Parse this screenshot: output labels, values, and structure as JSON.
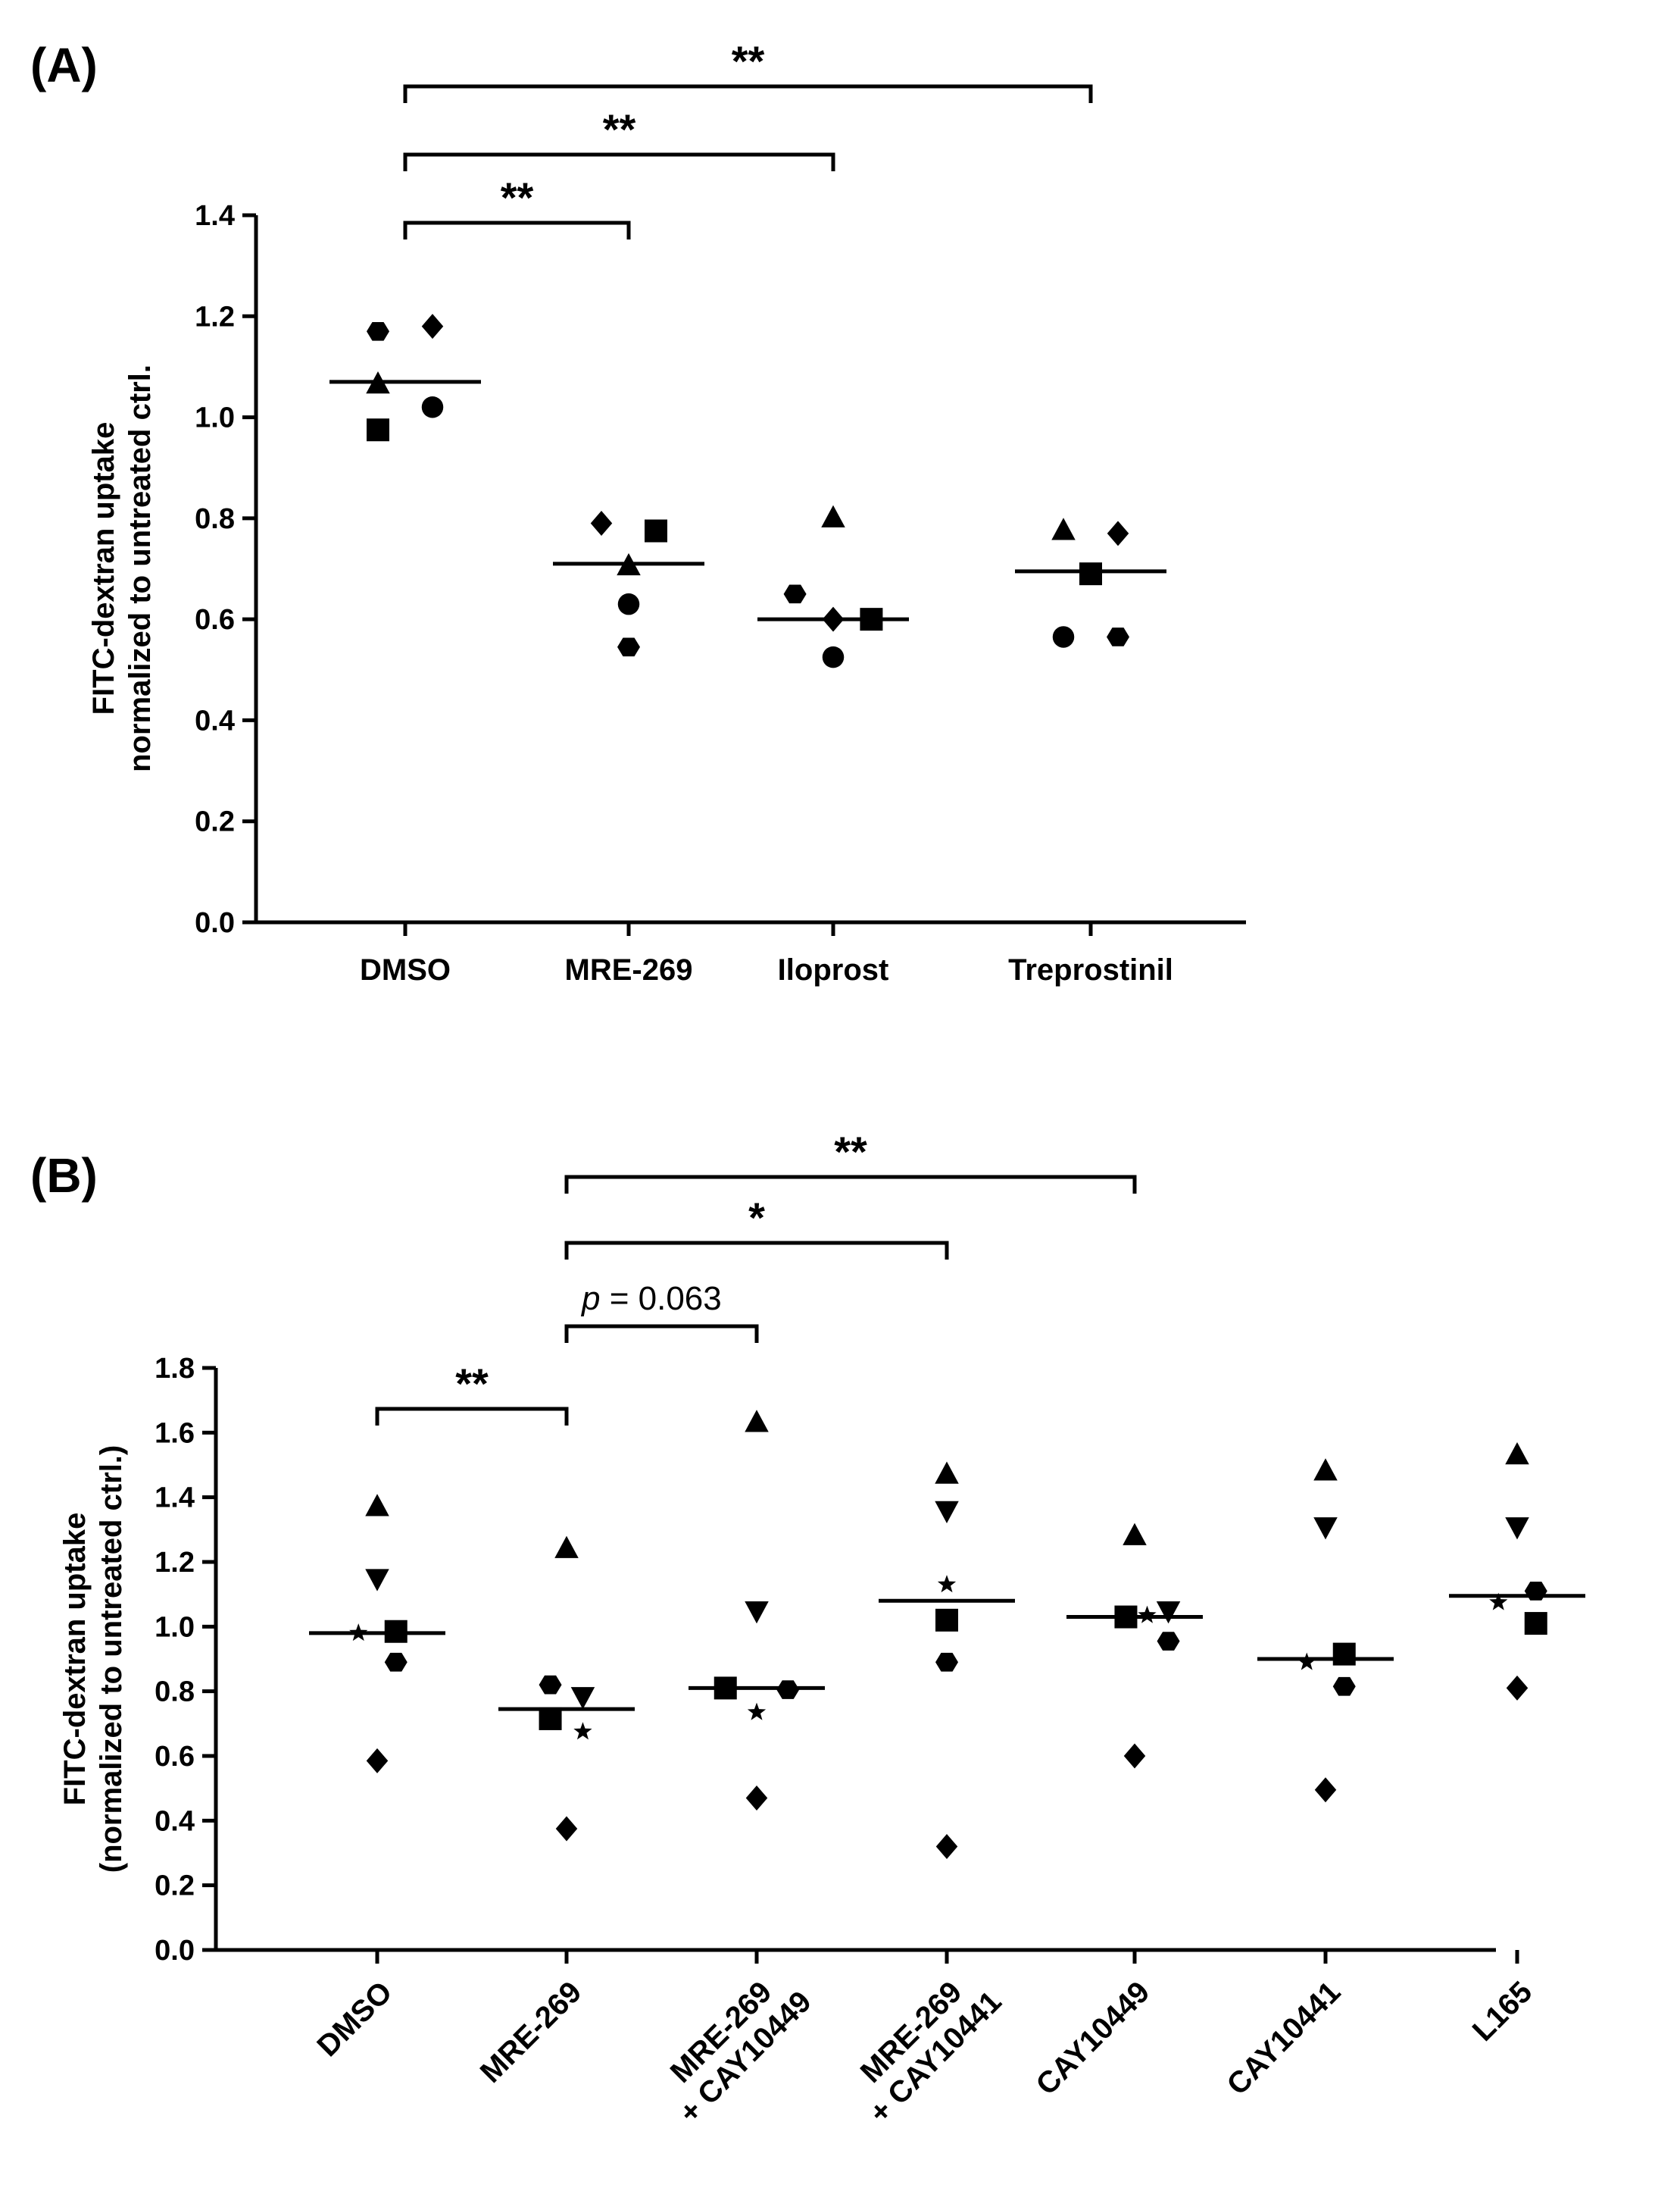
{
  "chart_data": [
    {
      "type": "scatter",
      "panel_label": "(A)",
      "ylabel": [
        "FITC-dextran uptake",
        "normalized  to untreated ctrl."
      ],
      "ylim": [
        0,
        1.4
      ],
      "yticks": [
        0.0,
        0.2,
        0.4,
        0.6,
        0.8,
        1.0,
        1.2,
        1.4
      ],
      "ytick_labels": [
        "0.0",
        "0.2",
        "0.4",
        "0.6",
        "0.8",
        "1.0",
        "1.2",
        "1.4"
      ],
      "categories": [
        "DMSO",
        "MRE-269",
        "Iloprost",
        "Treprostinil"
      ],
      "means": [
        1.07,
        0.71,
        0.6,
        0.695
      ],
      "points": [
        {
          "category": 0,
          "marker": "hexagon",
          "offset": -0.2,
          "y": 1.17
        },
        {
          "category": 0,
          "marker": "diamond",
          "offset": 0.2,
          "y": 1.18
        },
        {
          "category": 0,
          "marker": "triangle",
          "offset": -0.2,
          "y": 1.065
        },
        {
          "category": 0,
          "marker": "circle",
          "offset": 0.2,
          "y": 1.02
        },
        {
          "category": 0,
          "marker": "square",
          "offset": -0.2,
          "y": 0.975
        },
        {
          "category": 1,
          "marker": "diamond",
          "offset": -0.2,
          "y": 0.79
        },
        {
          "category": 1,
          "marker": "square",
          "offset": 0.2,
          "y": 0.775
        },
        {
          "category": 1,
          "marker": "triangle",
          "offset": 0,
          "y": 0.705
        },
        {
          "category": 1,
          "marker": "circle",
          "offset": 0,
          "y": 0.63
        },
        {
          "category": 1,
          "marker": "hexagon",
          "offset": 0,
          "y": 0.545
        },
        {
          "category": 2,
          "marker": "triangle",
          "offset": 0,
          "y": 0.8
        },
        {
          "category": 2,
          "marker": "hexagon",
          "offset": -0.28,
          "y": 0.65
        },
        {
          "category": 2,
          "marker": "diamond",
          "offset": 0,
          "y": 0.6
        },
        {
          "category": 2,
          "marker": "square",
          "offset": 0.28,
          "y": 0.6
        },
        {
          "category": 2,
          "marker": "circle",
          "offset": 0,
          "y": 0.525
        },
        {
          "category": 3,
          "marker": "triangle",
          "offset": -0.2,
          "y": 0.775
        },
        {
          "category": 3,
          "marker": "diamond",
          "offset": 0.2,
          "y": 0.77
        },
        {
          "category": 3,
          "marker": "square",
          "offset": 0,
          "y": 0.69
        },
        {
          "category": 3,
          "marker": "circle",
          "offset": -0.2,
          "y": 0.565
        },
        {
          "category": 3,
          "marker": "hexagon",
          "offset": 0.2,
          "y": 0.565
        }
      ],
      "brackets": [
        {
          "from": 0,
          "to": 1,
          "label": "**",
          "italic_p": false
        },
        {
          "from": 0,
          "to": 2,
          "label": "**",
          "italic_p": false
        },
        {
          "from": 0,
          "to": 3,
          "label": "**",
          "italic_p": false
        }
      ]
    },
    {
      "type": "scatter",
      "panel_label": "(B)",
      "ylabel": [
        "FITC-dextran uptake",
        "(normalized  to untreated ctrl.)"
      ],
      "ylim": [
        0,
        1.8
      ],
      "yticks": [
        0.0,
        0.2,
        0.4,
        0.6,
        0.8,
        1.0,
        1.2,
        1.4,
        1.6,
        1.8
      ],
      "ytick_labels": [
        "0.0",
        "0.2",
        "0.4",
        "0.6",
        "0.8",
        "1.0",
        "1.2",
        "1.4",
        "1.6",
        "1.8"
      ],
      "categories": [
        [
          "DMSO"
        ],
        [
          "MRE-269"
        ],
        [
          "MRE-269",
          "+ CAY10449"
        ],
        [
          "MRE-269",
          "+ CAY10441"
        ],
        [
          "CAY10449"
        ],
        [
          "CAY10441"
        ],
        [
          "L165"
        ]
      ],
      "means": [
        0.98,
        0.745,
        0.81,
        1.08,
        1.03,
        0.9,
        1.095
      ],
      "points": [
        {
          "category": 0,
          "marker": "triangle",
          "offset": 0,
          "y": 1.37
        },
        {
          "category": 0,
          "marker": "triangle-down",
          "offset": 0,
          "y": 1.15
        },
        {
          "category": 0,
          "marker": "star",
          "offset": -0.15,
          "y": 0.98
        },
        {
          "category": 0,
          "marker": "square",
          "offset": 0.15,
          "y": 0.985
        },
        {
          "category": 0,
          "marker": "hexagon",
          "offset": 0.15,
          "y": 0.89
        },
        {
          "category": 0,
          "marker": "diamond",
          "offset": 0,
          "y": 0.585
        },
        {
          "category": 1,
          "marker": "triangle",
          "offset": 0,
          "y": 1.24
        },
        {
          "category": 1,
          "marker": "hexagon",
          "offset": -0.13,
          "y": 0.82
        },
        {
          "category": 1,
          "marker": "triangle-down",
          "offset": 0.13,
          "y": 0.785
        },
        {
          "category": 1,
          "marker": "square",
          "offset": -0.13,
          "y": 0.715
        },
        {
          "category": 1,
          "marker": "star",
          "offset": 0.13,
          "y": 0.675
        },
        {
          "category": 1,
          "marker": "diamond",
          "offset": 0,
          "y": 0.375
        },
        {
          "category": 2,
          "marker": "triangle",
          "offset": 0,
          "y": 1.63
        },
        {
          "category": 2,
          "marker": "triangle-down",
          "offset": 0,
          "y": 1.05
        },
        {
          "category": 2,
          "marker": "square",
          "offset": -0.25,
          "y": 0.81
        },
        {
          "category": 2,
          "marker": "hexagon",
          "offset": 0.25,
          "y": 0.805
        },
        {
          "category": 2,
          "marker": "star",
          "offset": 0,
          "y": 0.735
        },
        {
          "category": 2,
          "marker": "diamond",
          "offset": 0,
          "y": 0.47
        },
        {
          "category": 3,
          "marker": "triangle",
          "offset": 0,
          "y": 1.47
        },
        {
          "category": 3,
          "marker": "triangle-down",
          "offset": 0,
          "y": 1.36
        },
        {
          "category": 3,
          "marker": "star",
          "offset": 0,
          "y": 1.13
        },
        {
          "category": 3,
          "marker": "square",
          "offset": 0,
          "y": 1.02
        },
        {
          "category": 3,
          "marker": "hexagon",
          "offset": 0,
          "y": 0.89
        },
        {
          "category": 3,
          "marker": "diamond",
          "offset": 0,
          "y": 0.32
        },
        {
          "category": 4,
          "marker": "triangle",
          "offset": 0,
          "y": 1.28
        },
        {
          "category": 4,
          "marker": "square",
          "offset": -0.07,
          "y": 1.03
        },
        {
          "category": 4,
          "marker": "star",
          "offset": 0.1,
          "y": 1.035
        },
        {
          "category": 4,
          "marker": "triangle-down",
          "offset": 0.27,
          "y": 1.05
        },
        {
          "category": 4,
          "marker": "hexagon",
          "offset": 0.27,
          "y": 0.955
        },
        {
          "category": 4,
          "marker": "diamond",
          "offset": 0,
          "y": 0.6
        },
        {
          "category": 5,
          "marker": "triangle",
          "offset": 0,
          "y": 1.48
        },
        {
          "category": 5,
          "marker": "triangle-down",
          "offset": 0,
          "y": 1.31
        },
        {
          "category": 5,
          "marker": "star",
          "offset": -0.15,
          "y": 0.89
        },
        {
          "category": 5,
          "marker": "square",
          "offset": 0.15,
          "y": 0.915
        },
        {
          "category": 5,
          "marker": "hexagon",
          "offset": 0.15,
          "y": 0.815
        },
        {
          "category": 5,
          "marker": "diamond",
          "offset": 0,
          "y": 0.495
        },
        {
          "category": 6,
          "marker": "triangle",
          "offset": 0,
          "y": 1.53
        },
        {
          "category": 6,
          "marker": "triangle-down",
          "offset": 0,
          "y": 1.31
        },
        {
          "category": 6,
          "marker": "hexagon",
          "offset": 0.15,
          "y": 1.11
        },
        {
          "category": 6,
          "marker": "star",
          "offset": -0.15,
          "y": 1.075
        },
        {
          "category": 6,
          "marker": "square",
          "offset": 0.15,
          "y": 1.01
        },
        {
          "category": 6,
          "marker": "diamond",
          "offset": 0,
          "y": 0.81
        }
      ],
      "brackets": [
        {
          "from": 0,
          "to": 1,
          "label": "**",
          "italic_p": false
        },
        {
          "from": 1,
          "to": 2,
          "label": " = 0.063",
          "italic_p": true,
          "p_letter": "p"
        },
        {
          "from": 1,
          "to": 3,
          "label": "*",
          "italic_p": false
        },
        {
          "from": 1,
          "to": 4,
          "label": "**",
          "italic_p": false
        }
      ]
    }
  ]
}
